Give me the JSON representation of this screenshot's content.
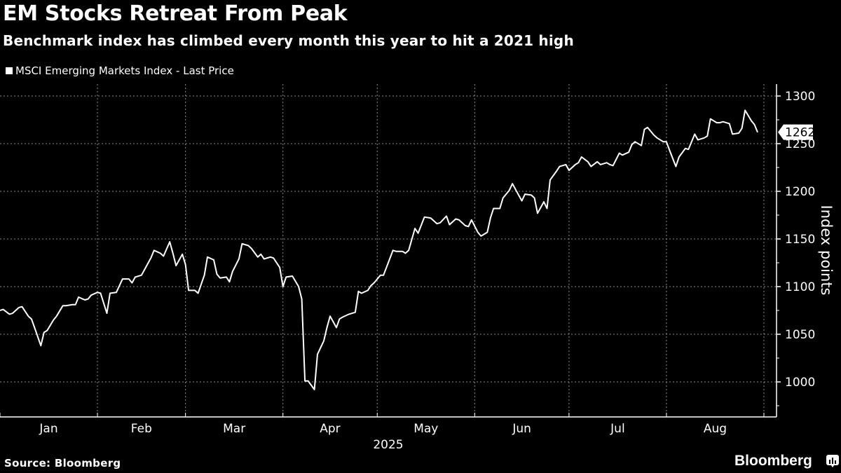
{
  "header": {
    "title": "EM Stocks Retreat From Peak",
    "subtitle": "Benchmark index has climbed every month this year to hit a 2021 high"
  },
  "footer": {
    "source": "Source: Bloomberg",
    "brand": "Bloomberg",
    "brand_icon": "bloomberg-chart-icon"
  },
  "colors": {
    "background": "#000000",
    "line": "#ffffff",
    "grid": "#8a8a8a"
  },
  "chart_data": {
    "type": "line",
    "title": "EM Stocks Retreat From Peak",
    "subtitle": "Benchmark index has climbed every month this year to hit a 2021 high",
    "xlabel": "2025",
    "ylabel": "Index points",
    "ylim": [
      960,
      1320
    ],
    "yticks": [
      1000,
      1050,
      1100,
      1150,
      1200,
      1250,
      1300
    ],
    "xlim": [
      "2025-01-01",
      "2025-09-01"
    ],
    "xtick_labels": [
      "Jan",
      "Feb",
      "Mar",
      "Apr",
      "May",
      "Jun",
      "Jul",
      "Aug"
    ],
    "grid": true,
    "legend": "top-left",
    "last_value_label": "1262",
    "series": [
      {
        "name": "MSCI Emerging Markets Index - Last Price",
        "points": [
          [
            "2025-01-01",
            1075
          ],
          [
            "2025-01-02",
            1076
          ],
          [
            "2025-01-04",
            1071
          ],
          [
            "2025-01-05",
            1072
          ],
          [
            "2025-01-07",
            1078
          ],
          [
            "2025-01-08",
            1079
          ],
          [
            "2025-01-10",
            1069
          ],
          [
            "2025-01-11",
            1066
          ],
          [
            "2025-01-12",
            1057
          ],
          [
            "2025-01-14",
            1038
          ],
          [
            "2025-01-15",
            1052
          ],
          [
            "2025-01-16",
            1054
          ],
          [
            "2025-01-18",
            1065
          ],
          [
            "2025-01-19",
            1069
          ],
          [
            "2025-01-21",
            1080
          ],
          [
            "2025-01-22",
            1080
          ],
          [
            "2025-01-24",
            1081
          ],
          [
            "2025-01-25",
            1081
          ],
          [
            "2025-01-26",
            1089
          ],
          [
            "2025-01-28",
            1086
          ],
          [
            "2025-01-29",
            1087
          ],
          [
            "2025-01-30",
            1091
          ],
          [
            "2025-02-01",
            1094
          ],
          [
            "2025-02-02",
            1093
          ],
          [
            "2025-02-04",
            1072
          ],
          [
            "2025-02-05",
            1093
          ],
          [
            "2025-02-07",
            1094
          ],
          [
            "2025-02-09",
            1108
          ],
          [
            "2025-02-11",
            1108
          ],
          [
            "2025-02-12",
            1104
          ],
          [
            "2025-02-13",
            1110
          ],
          [
            "2025-02-15",
            1112
          ],
          [
            "2025-02-17",
            1124
          ],
          [
            "2025-02-18",
            1130
          ],
          [
            "2025-02-19",
            1138
          ],
          [
            "2025-02-21",
            1135
          ],
          [
            "2025-02-22",
            1132
          ],
          [
            "2025-02-24",
            1147
          ],
          [
            "2025-02-25",
            1135
          ],
          [
            "2025-02-26",
            1122
          ],
          [
            "2025-02-28",
            1134
          ],
          [
            "2025-03-01",
            1123
          ],
          [
            "2025-03-02",
            1096
          ],
          [
            "2025-03-04",
            1096
          ],
          [
            "2025-03-05",
            1093
          ],
          [
            "2025-03-07",
            1112
          ],
          [
            "2025-03-08",
            1131
          ],
          [
            "2025-03-10",
            1128
          ],
          [
            "2025-03-11",
            1113
          ],
          [
            "2025-03-12",
            1109
          ],
          [
            "2025-03-14",
            1110
          ],
          [
            "2025-03-15",
            1105
          ],
          [
            "2025-03-16",
            1116
          ],
          [
            "2025-03-18",
            1129
          ],
          [
            "2025-03-19",
            1145
          ],
          [
            "2025-03-21",
            1143
          ],
          [
            "2025-03-22",
            1140
          ],
          [
            "2025-03-24",
            1131
          ],
          [
            "2025-03-25",
            1134
          ],
          [
            "2025-03-26",
            1129
          ],
          [
            "2025-03-28",
            1131
          ],
          [
            "2025-03-29",
            1130
          ],
          [
            "2025-03-31",
            1120
          ],
          [
            "2025-04-01",
            1100
          ],
          [
            "2025-04-02",
            1110
          ],
          [
            "2025-04-04",
            1111
          ],
          [
            "2025-04-06",
            1100
          ],
          [
            "2025-04-07",
            1087
          ],
          [
            "2025-04-08",
            1001
          ],
          [
            "2025-04-09",
            1001
          ],
          [
            "2025-04-11",
            992
          ],
          [
            "2025-04-12",
            1029
          ],
          [
            "2025-04-14",
            1043
          ],
          [
            "2025-04-15",
            1057
          ],
          [
            "2025-04-16",
            1069
          ],
          [
            "2025-04-18",
            1057
          ],
          [
            "2025-04-19",
            1066
          ],
          [
            "2025-04-20",
            1068
          ],
          [
            "2025-04-22",
            1071
          ],
          [
            "2025-04-24",
            1073
          ],
          [
            "2025-04-25",
            1095
          ],
          [
            "2025-04-26",
            1093
          ],
          [
            "2025-04-28",
            1096
          ],
          [
            "2025-04-29",
            1101
          ],
          [
            "2025-04-30",
            1104
          ],
          [
            "2025-05-02",
            1112
          ],
          [
            "2025-05-03",
            1112
          ],
          [
            "2025-05-06",
            1138
          ],
          [
            "2025-05-07",
            1137
          ],
          [
            "2025-05-09",
            1137
          ],
          [
            "2025-05-10",
            1135
          ],
          [
            "2025-05-11",
            1138
          ],
          [
            "2025-05-13",
            1161
          ],
          [
            "2025-05-14",
            1156
          ],
          [
            "2025-05-16",
            1173
          ],
          [
            "2025-05-18",
            1172
          ],
          [
            "2025-05-20",
            1166
          ],
          [
            "2025-05-21",
            1167
          ],
          [
            "2025-05-23",
            1174
          ],
          [
            "2025-05-24",
            1165
          ],
          [
            "2025-05-26",
            1171
          ],
          [
            "2025-05-27",
            1170
          ],
          [
            "2025-05-29",
            1164
          ],
          [
            "2025-05-30",
            1163
          ],
          [
            "2025-05-31",
            1170
          ],
          [
            "2025-06-02",
            1157
          ],
          [
            "2025-06-03",
            1153
          ],
          [
            "2025-06-05",
            1157
          ],
          [
            "2025-06-06",
            1172
          ],
          [
            "2025-06-07",
            1182
          ],
          [
            "2025-06-09",
            1182
          ],
          [
            "2025-06-10",
            1193
          ],
          [
            "2025-06-12",
            1201
          ],
          [
            "2025-06-13",
            1208
          ],
          [
            "2025-06-14",
            1202
          ],
          [
            "2025-06-16",
            1190
          ],
          [
            "2025-06-17",
            1197
          ],
          [
            "2025-06-19",
            1196
          ],
          [
            "2025-06-20",
            1193
          ],
          [
            "2025-06-21",
            1177
          ],
          [
            "2025-06-23",
            1189
          ],
          [
            "2025-06-24",
            1182
          ],
          [
            "2025-06-25",
            1212
          ],
          [
            "2025-06-27",
            1221
          ],
          [
            "2025-06-28",
            1226
          ],
          [
            "2025-06-30",
            1228
          ],
          [
            "2025-07-01",
            1222
          ],
          [
            "2025-07-03",
            1228
          ],
          [
            "2025-07-04",
            1230
          ],
          [
            "2025-07-05",
            1236
          ],
          [
            "2025-07-07",
            1231
          ],
          [
            "2025-07-08",
            1226
          ],
          [
            "2025-07-10",
            1231
          ],
          [
            "2025-07-11",
            1228
          ],
          [
            "2025-07-13",
            1230
          ],
          [
            "2025-07-14",
            1228
          ],
          [
            "2025-07-15",
            1227
          ],
          [
            "2025-07-17",
            1240
          ],
          [
            "2025-07-18",
            1238
          ],
          [
            "2025-07-20",
            1241
          ],
          [
            "2025-07-21",
            1249
          ],
          [
            "2025-07-22",
            1252
          ],
          [
            "2025-07-24",
            1248
          ],
          [
            "2025-07-25",
            1265
          ],
          [
            "2025-07-26",
            1267
          ],
          [
            "2025-07-28",
            1259
          ],
          [
            "2025-07-29",
            1256
          ],
          [
            "2025-07-31",
            1252
          ],
          [
            "2025-08-01",
            1252
          ],
          [
            "2025-08-02",
            1243
          ],
          [
            "2025-08-04",
            1226
          ],
          [
            "2025-08-05",
            1236
          ],
          [
            "2025-08-07",
            1245
          ],
          [
            "2025-08-08",
            1244
          ],
          [
            "2025-08-10",
            1260
          ],
          [
            "2025-08-11",
            1254
          ],
          [
            "2025-08-13",
            1256
          ],
          [
            "2025-08-14",
            1258
          ],
          [
            "2025-08-15",
            1276
          ],
          [
            "2025-08-17",
            1272
          ],
          [
            "2025-08-18",
            1272
          ],
          [
            "2025-08-19",
            1273
          ],
          [
            "2025-08-21",
            1271
          ],
          [
            "2025-08-22",
            1260
          ],
          [
            "2025-08-24",
            1261
          ],
          [
            "2025-08-25",
            1266
          ],
          [
            "2025-08-26",
            1285
          ],
          [
            "2025-08-28",
            1274
          ],
          [
            "2025-08-29",
            1270
          ],
          [
            "2025-08-30",
            1262
          ]
        ]
      }
    ]
  }
}
